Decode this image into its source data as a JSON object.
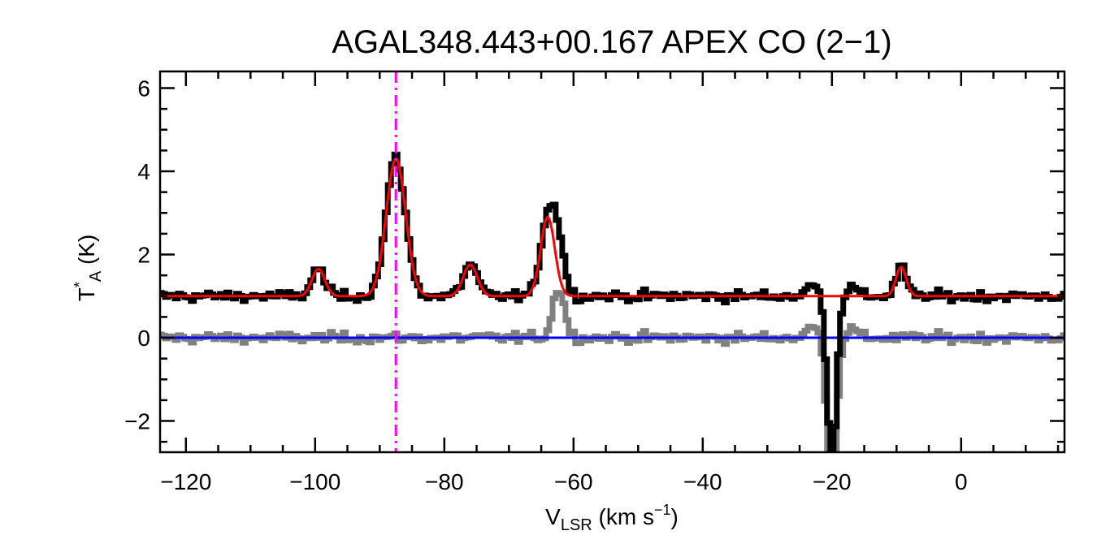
{
  "chart_data": {
    "type": "line",
    "title": "AGAL348.443+00.167  APEX CO (2−1)",
    "xlabel": {
      "main": "V",
      "sub": "LSR",
      "unit_pre": " (km s",
      "sup": "−1",
      "unit_post": ")"
    },
    "ylabel": {
      "main": "T",
      "sup": "*",
      "sub": "A",
      "unit": " (K)"
    },
    "xlim": [
      -124,
      16
    ],
    "ylim": [
      -2.75,
      6.4
    ],
    "xticks": [
      -120,
      -100,
      -80,
      -60,
      -40,
      -20,
      0
    ],
    "xtick_labels": [
      "−120",
      "−100",
      "−80",
      "−60",
      "−40",
      "−20",
      "0"
    ],
    "yticks": [
      -2,
      0,
      2,
      4,
      6
    ],
    "ytick_labels": [
      "−2",
      "0",
      "2",
      "4",
      "6"
    ],
    "x_minor_step": 5,
    "y_minor_step": 0.5,
    "reference_velocity": -87.5,
    "baseline_zero": 0,
    "spectrum_offset": 1.0,
    "channel_width": 0.5,
    "fit_components": [
      {
        "center": -99.5,
        "amplitude": 0.65,
        "sigma": 1.0
      },
      {
        "center": -87.5,
        "amplitude": 3.3,
        "sigma": 1.5
      },
      {
        "center": -76.0,
        "amplitude": 0.75,
        "sigma": 1.1
      },
      {
        "center": -64.0,
        "amplitude": 1.9,
        "sigma": 1.1
      },
      {
        "center": -9.3,
        "amplitude": 0.7,
        "sigma": 0.8
      }
    ],
    "unfit_features": [
      {
        "center": -62.3,
        "amplitude": 1.2,
        "sigma": 0.9
      },
      {
        "center": -20.0,
        "amplitude": -4.0,
        "sigma": 0.7
      },
      {
        "center": -23.0,
        "amplitude": 0.25,
        "sigma": 1.0
      },
      {
        "center": -17.0,
        "amplitude": 0.2,
        "sigma": 1.0
      }
    ],
    "noise_rms": 0.12,
    "series": [
      {
        "name": "observed spectrum",
        "color": "#000000"
      },
      {
        "name": "gaussian fit",
        "color": "#ff0000"
      },
      {
        "name": "residual",
        "color": "#808080"
      },
      {
        "name": "zero baseline",
        "color": "#0000ff"
      },
      {
        "name": "source velocity",
        "color": "#ff00ff"
      }
    ]
  }
}
